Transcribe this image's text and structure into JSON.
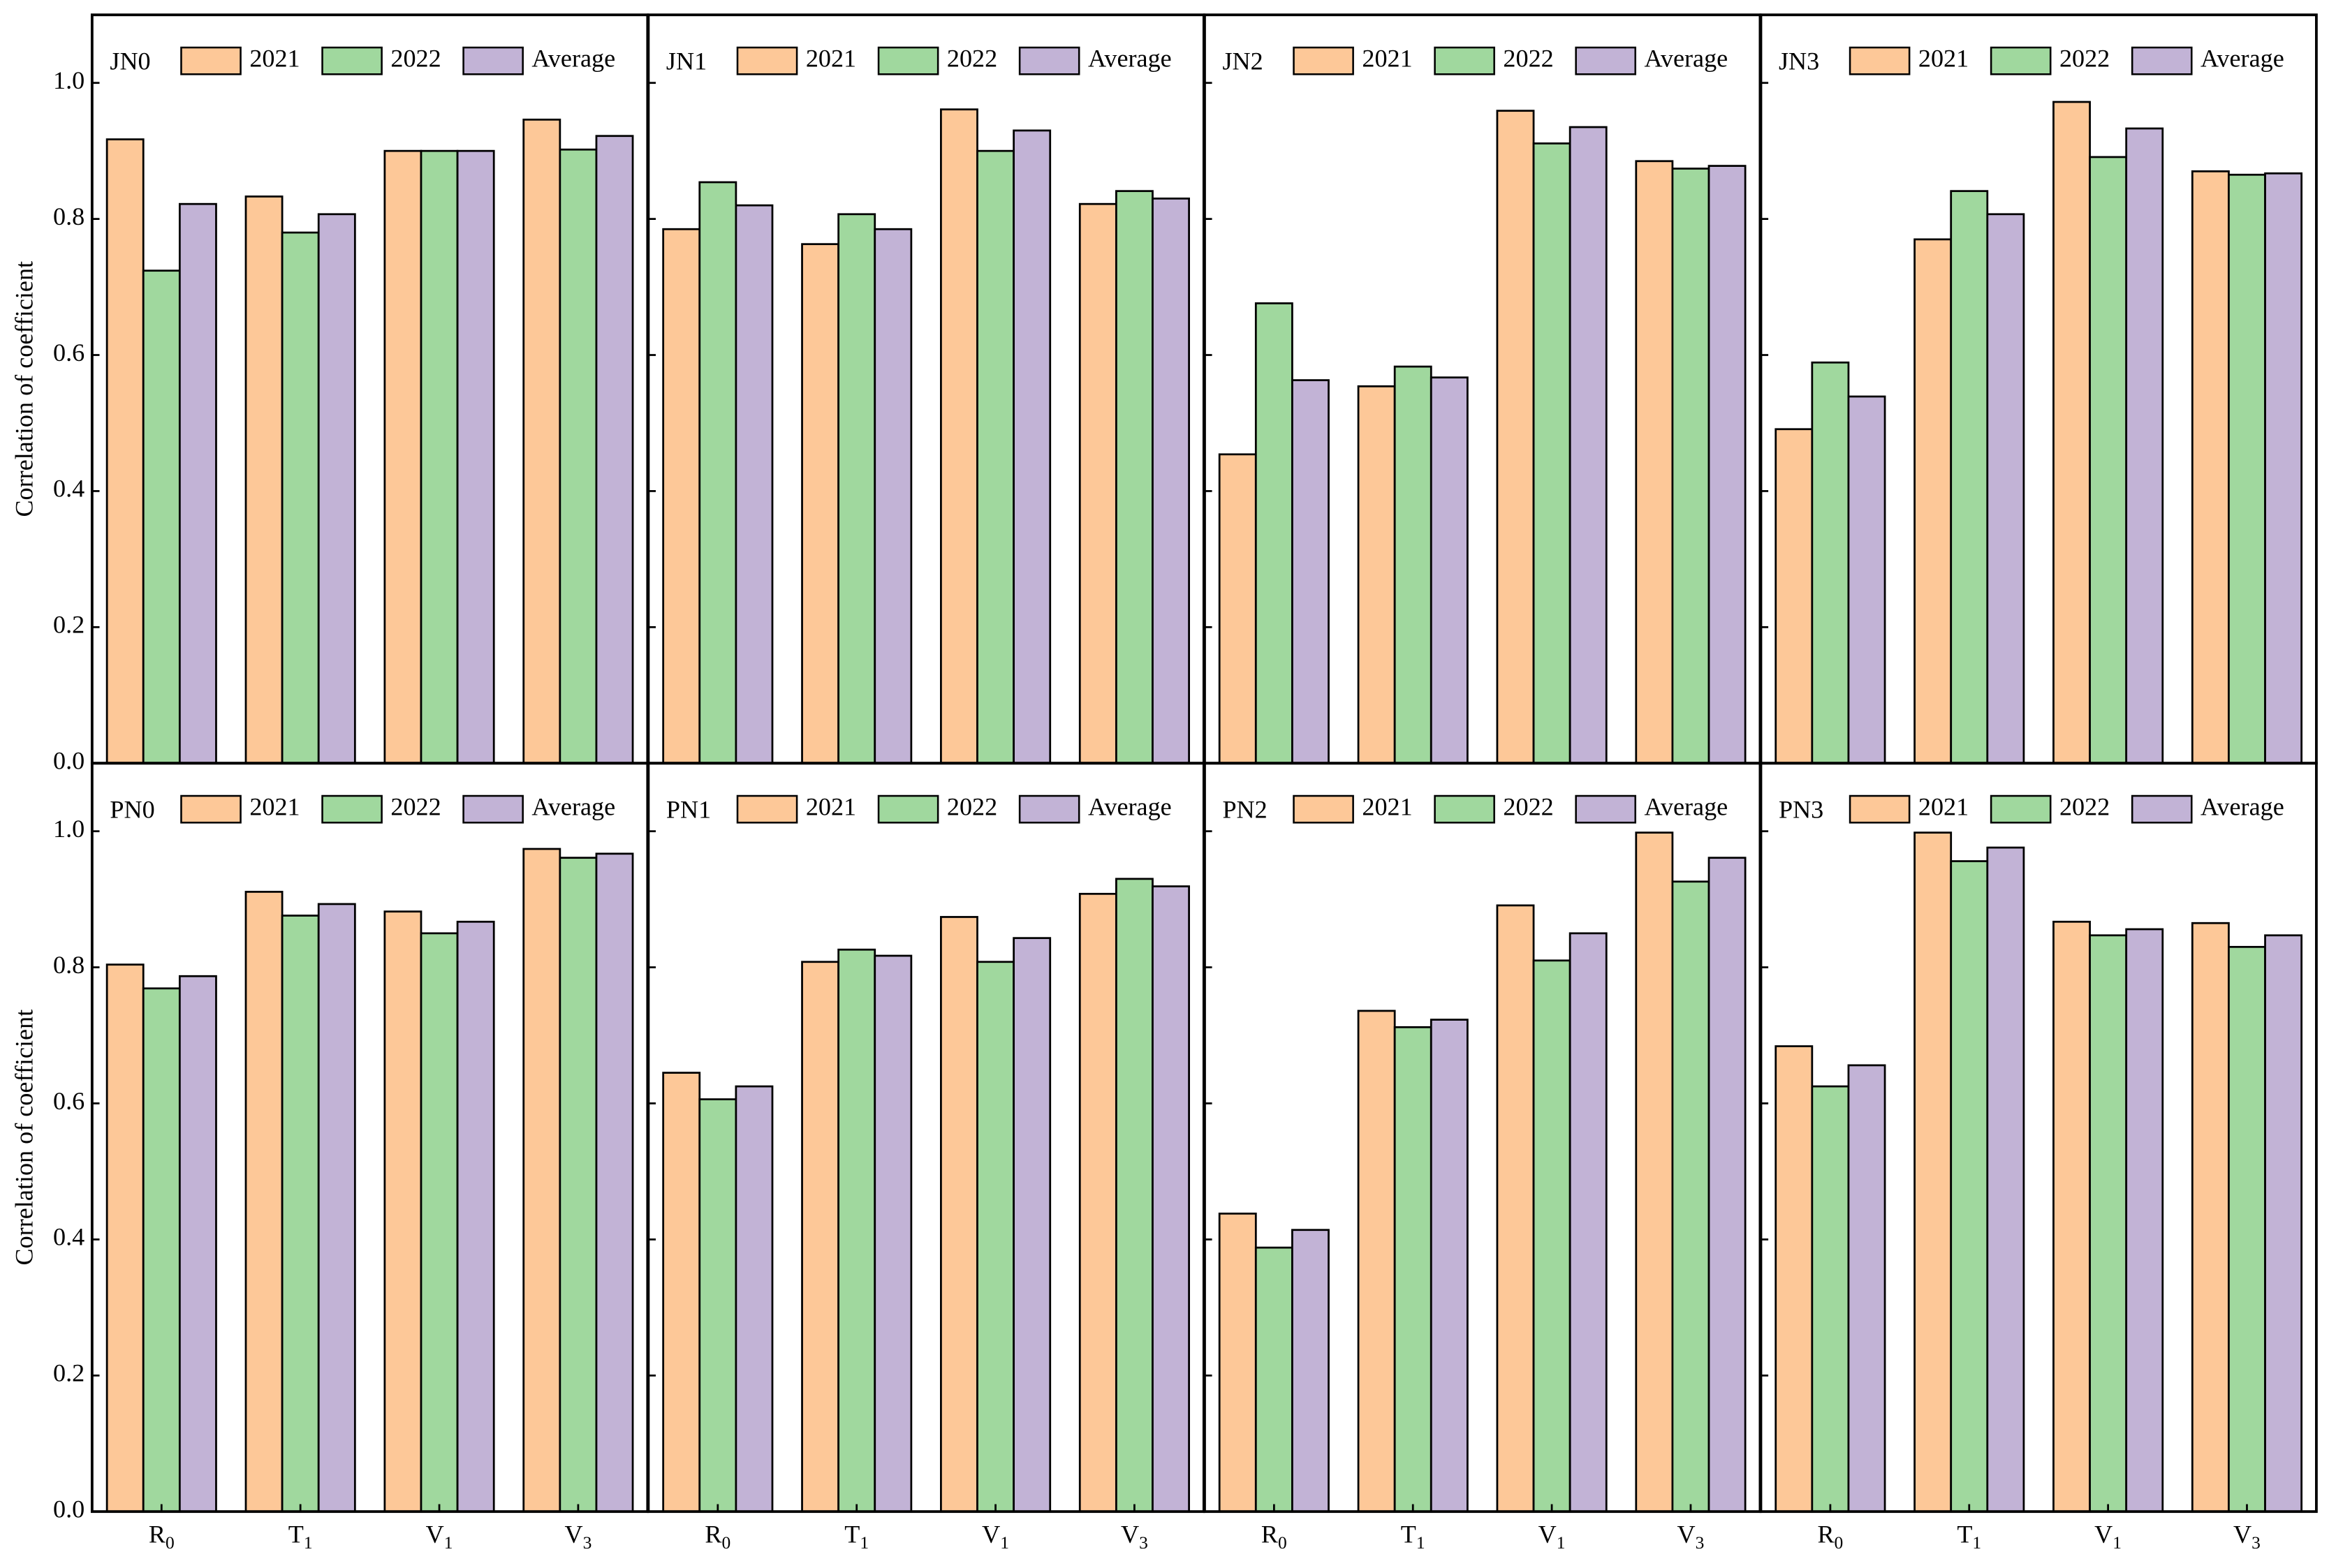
{
  "chart_data": [
    {
      "type": "bar",
      "title": "JN0",
      "y_label": "Correlation of coefficient",
      "categories": [
        null,
        null,
        null,
        null
      ],
      "series": [
        {
          "name": "2021",
          "color": "#fdc898",
          "values": [
            0.917,
            0.833,
            0.9,
            0.946
          ]
        },
        {
          "name": "2022",
          "color": "#a0d89e",
          "values": [
            0.724,
            0.78,
            0.9,
            0.902
          ]
        },
        {
          "name": "Average",
          "color": "#c2b3d6",
          "values": [
            0.822,
            0.807,
            0.9,
            0.922
          ]
        }
      ],
      "ylim": [
        0,
        1.1
      ],
      "yticks": [
        {
          "value": 0,
          "label": "0.0"
        },
        {
          "value": 0.2,
          "label": "0.2"
        },
        {
          "value": 0.4,
          "label": "0.4"
        },
        {
          "value": 0.6,
          "label": "0.6"
        },
        {
          "value": 0.8,
          "label": "0.8"
        },
        {
          "value": 1,
          "label": "1.0"
        }
      ]
    },
    {
      "type": "bar",
      "title": "JN1",
      "categories": [
        null,
        null,
        null,
        null
      ],
      "series": [
        {
          "name": "2021",
          "color": "#fdc898",
          "values": [
            0.785,
            0.763,
            0.961,
            0.822
          ]
        },
        {
          "name": "2022",
          "color": "#a0d89e",
          "values": [
            0.854,
            0.807,
            0.9,
            0.841
          ]
        },
        {
          "name": "Average",
          "color": "#c2b3d6",
          "values": [
            0.82,
            0.785,
            0.93,
            0.83
          ]
        }
      ],
      "ylim": [
        0,
        1.1
      ],
      "yticks": [
        0,
        0.2,
        0.4,
        0.6,
        0.8,
        1
      ]
    },
    {
      "type": "bar",
      "title": "JN2",
      "categories": [
        null,
        null,
        null,
        null
      ],
      "series": [
        {
          "name": "2021",
          "color": "#fdc898",
          "values": [
            0.454,
            0.554,
            0.959,
            0.885
          ]
        },
        {
          "name": "2022",
          "color": "#a0d89e",
          "values": [
            0.676,
            0.583,
            0.911,
            0.874
          ]
        },
        {
          "name": "Average",
          "color": "#c2b3d6",
          "values": [
            0.563,
            0.567,
            0.935,
            0.878
          ]
        }
      ],
      "ylim": [
        0,
        1.1
      ],
      "yticks": [
        0,
        0.2,
        0.4,
        0.6,
        0.8,
        1
      ]
    },
    {
      "type": "bar",
      "title": "JN3",
      "categories": [
        null,
        null,
        null,
        null
      ],
      "series": [
        {
          "name": "2021",
          "color": "#fdc898",
          "values": [
            0.491,
            0.77,
            0.972,
            0.87
          ]
        },
        {
          "name": "2022",
          "color": "#a0d89e",
          "values": [
            0.589,
            0.841,
            0.891,
            0.865
          ]
        },
        {
          "name": "Average",
          "color": "#c2b3d6",
          "values": [
            0.539,
            0.807,
            0.933,
            0.867
          ]
        }
      ],
      "ylim": [
        0,
        1.1
      ],
      "yticks": [
        0,
        0.2,
        0.4,
        0.6,
        0.8,
        1
      ]
    },
    {
      "type": "bar",
      "title": "PN0",
      "y_label": "Correlation of coefficient",
      "categories": [
        "R0",
        "T1",
        "V1",
        "V3"
      ],
      "series": [
        {
          "name": "2021",
          "color": "#fdc898",
          "values": [
            0.804,
            0.911,
            0.882,
            0.974
          ]
        },
        {
          "name": "2022",
          "color": "#a0d89e",
          "values": [
            0.769,
            0.876,
            0.85,
            0.961
          ]
        },
        {
          "name": "Average",
          "color": "#c2b3d6",
          "values": [
            0.787,
            0.893,
            0.867,
            0.967
          ]
        }
      ],
      "ylim": [
        0,
        1.1
      ],
      "yticks": [
        {
          "value": 0,
          "label": "0.0"
        },
        {
          "value": 0.2,
          "label": "0.2"
        },
        {
          "value": 0.4,
          "label": "0.4"
        },
        {
          "value": 0.6,
          "label": "0.6"
        },
        {
          "value": 0.8,
          "label": "0.8"
        },
        {
          "value": 1,
          "label": "1.0"
        }
      ]
    },
    {
      "type": "bar",
      "title": "PN1",
      "categories": [
        "R0",
        "T1",
        "V1",
        "V3"
      ],
      "series": [
        {
          "name": "2021",
          "color": "#fdc898",
          "values": [
            0.645,
            0.808,
            0.874,
            0.908
          ]
        },
        {
          "name": "2022",
          "color": "#a0d89e",
          "values": [
            0.606,
            0.826,
            0.808,
            0.93
          ]
        },
        {
          "name": "Average",
          "color": "#c2b3d6",
          "values": [
            0.625,
            0.817,
            0.843,
            0.919
          ]
        }
      ],
      "ylim": [
        0,
        1.1
      ],
      "yticks": [
        0,
        0.2,
        0.4,
        0.6,
        0.8,
        1
      ]
    },
    {
      "type": "bar",
      "title": "PN2",
      "categories": [
        "R0",
        "T1",
        "V1",
        "V3"
      ],
      "series": [
        {
          "name": "2021",
          "color": "#fdc898",
          "values": [
            0.438,
            0.736,
            0.891,
            0.998
          ]
        },
        {
          "name": "2022",
          "color": "#a0d89e",
          "values": [
            0.388,
            0.712,
            0.81,
            0.926
          ]
        },
        {
          "name": "Average",
          "color": "#c2b3d6",
          "values": [
            0.414,
            0.723,
            0.85,
            0.961
          ]
        }
      ],
      "ylim": [
        0,
        1.1
      ],
      "yticks": [
        0,
        0.2,
        0.4,
        0.6,
        0.8,
        1
      ]
    },
    {
      "type": "bar",
      "title": "PN3",
      "categories": [
        "R0",
        "T1",
        "V1",
        "V3"
      ],
      "series": [
        {
          "name": "2021",
          "color": "#fdc898",
          "values": [
            0.684,
            0.998,
            0.867,
            0.865
          ]
        },
        {
          "name": "2022",
          "color": "#a0d89e",
          "values": [
            0.625,
            0.956,
            0.847,
            0.83
          ]
        },
        {
          "name": "Average",
          "color": "#c2b3d6",
          "values": [
            0.656,
            0.976,
            0.856,
            0.847
          ]
        }
      ],
      "ylim": [
        0,
        1.1
      ],
      "yticks": [
        0,
        0.2,
        0.4,
        0.6,
        0.8,
        1
      ]
    }
  ]
}
